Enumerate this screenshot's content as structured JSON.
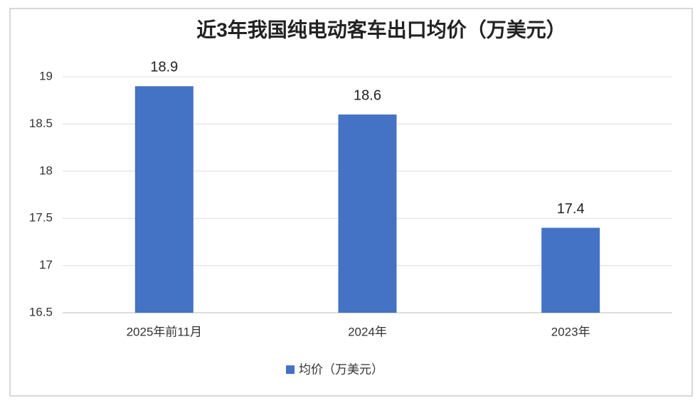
{
  "chart_data": {
    "type": "bar",
    "title": "近3年我国纯电动客车出口均价（万美元）",
    "categories": [
      "2025年前11月",
      "2024年",
      "2023年"
    ],
    "series": [
      {
        "name": "均价（万美元）",
        "color": "#4472c4",
        "values": [
          18.9,
          18.6,
          17.4
        ]
      }
    ],
    "ylim": [
      16.5,
      19
    ],
    "yticks": [
      16.5,
      17,
      17.5,
      18,
      18.5,
      19
    ],
    "grid": true,
    "legend": "bottom"
  }
}
